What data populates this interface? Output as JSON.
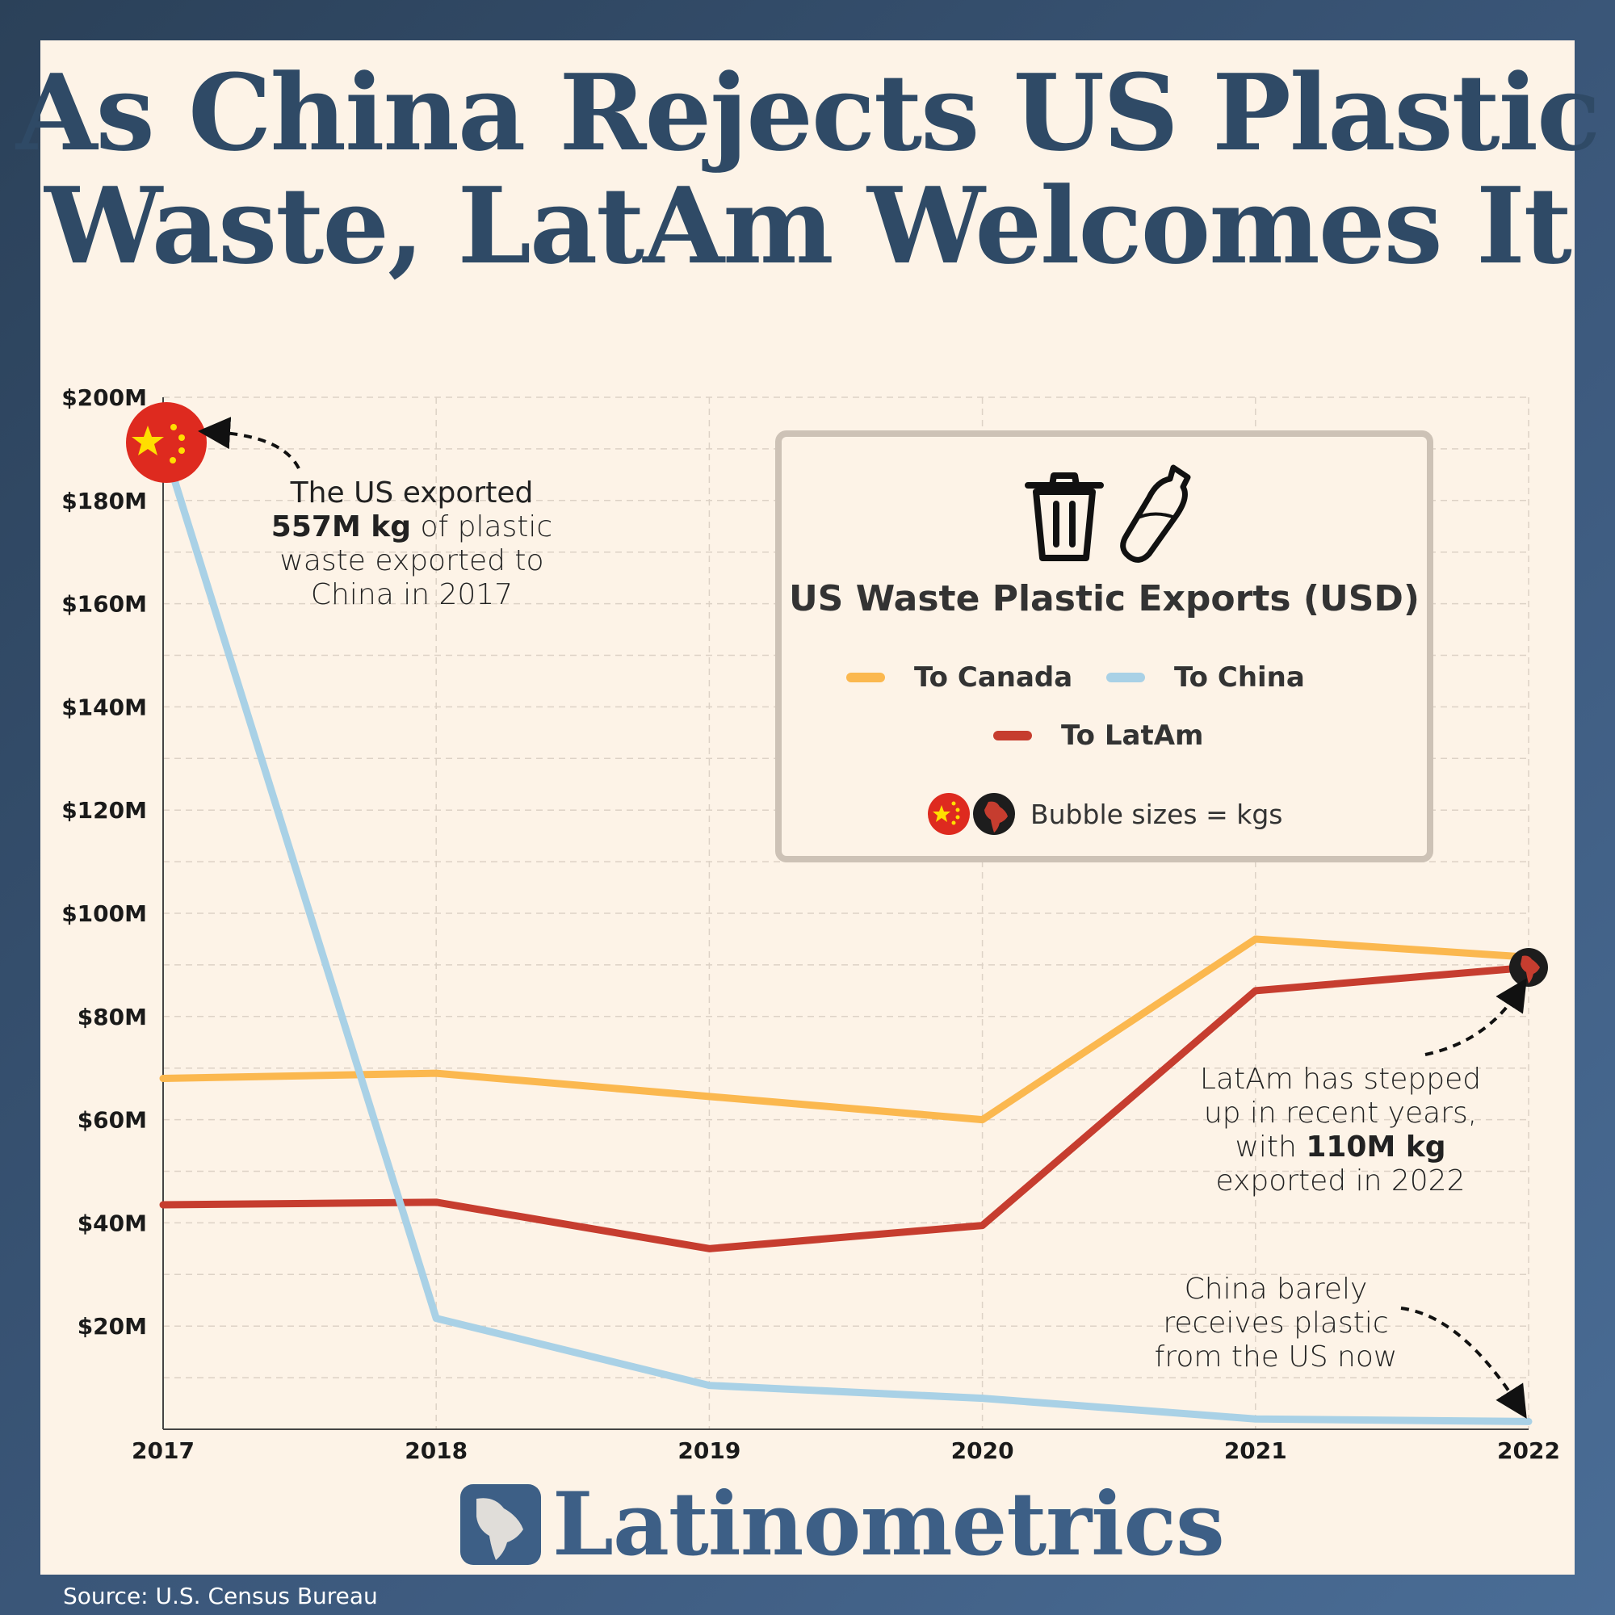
{
  "title": {
    "line1": "As China Rejects US Plastic",
    "line2": "Waste, LatAm Welcomes It"
  },
  "legend": {
    "title": "US Waste Plastic Exports (USD)",
    "bubble_note": "Bubble sizes = kgs",
    "icons": [
      "trash-can-icon",
      "plastic-bottle-icon"
    ]
  },
  "annotations": {
    "china_2017": {
      "line1": "The US exported",
      "bold": "557M kg",
      "rest": "of plastic",
      "line3": "waste exported to",
      "line4": "China in 2017"
    },
    "latam_2022": {
      "line1": "LatAm has stepped",
      "line2": "up in recent years,",
      "pre": "with",
      "bold": "110M kg",
      "line4": "exported in 2022"
    },
    "china_now": {
      "line1": "China barely",
      "line2": "receives plastic",
      "line3": "from the US now"
    }
  },
  "brand": "Latinometrics",
  "source": "Source: U.S. Census Bureau",
  "colors": {
    "canada": "#fbb84f",
    "china": "#a9d1e6",
    "latam": "#c63d2f",
    "title": "#2f4a66"
  },
  "chart_data": {
    "type": "line",
    "x": [
      "2017",
      "2018",
      "2019",
      "2020",
      "2021",
      "2022"
    ],
    "y_ticks": [
      "$200M",
      "$180M",
      "$160M",
      "$140M",
      "$120M",
      "$100M",
      "$80M",
      "$60M",
      "$40M",
      "$20M"
    ],
    "ylim": [
      0,
      200
    ],
    "series": [
      {
        "name": "To Canada",
        "color": "#fbb84f",
        "values": [
          68,
          69,
          64.5,
          60,
          95,
          91.5
        ]
      },
      {
        "name": "To China",
        "color": "#a9d1e6",
        "values": [
          191,
          21.5,
          8.5,
          6,
          2,
          1.5
        ]
      },
      {
        "name": "To LatAm",
        "color": "#c63d2f",
        "values": [
          43.5,
          44,
          35,
          39.5,
          85,
          89.5
        ]
      }
    ],
    "bubbles": [
      {
        "series": "To China",
        "x": "2017",
        "kg": "557M kg"
      },
      {
        "series": "To LatAm",
        "x": "2022",
        "kg": "110M kg"
      }
    ],
    "grid": true,
    "legend_position": "top-right"
  }
}
